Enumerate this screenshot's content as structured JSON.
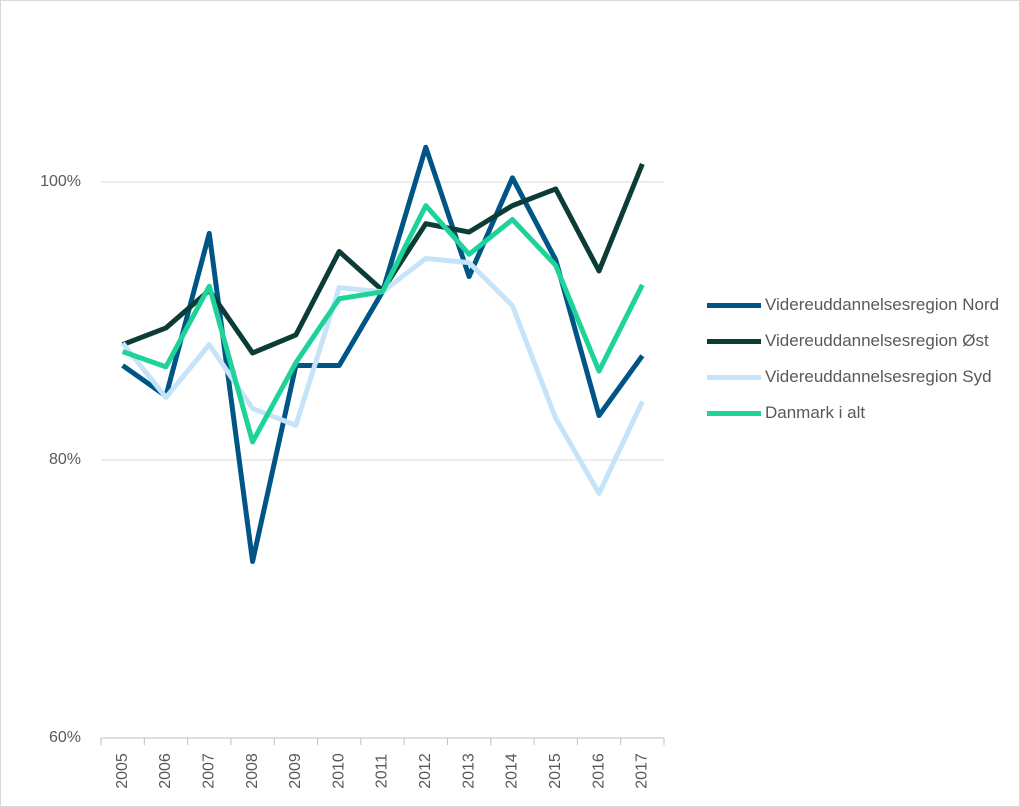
{
  "chart_data": {
    "type": "line",
    "categories": [
      "2005",
      "2006",
      "2007",
      "2008",
      "2009",
      "2010",
      "2011",
      "2012",
      "2013",
      "2014",
      "2015",
      "2016",
      "2017"
    ],
    "series": [
      {
        "name": "Videreuddannelsesregion Nord",
        "color": "#005587",
        "values": [
          86.8,
          84.6,
          96.3,
          72.7,
          86.8,
          86.8,
          92.1,
          102.5,
          93.2,
          100.3,
          94.4,
          83.2,
          87.5
        ]
      },
      {
        "name": "Videreuddannelsesregion Øst",
        "color": "#0b3d36",
        "values": [
          88.3,
          89.5,
          92.2,
          87.7,
          89.0,
          95.0,
          92.2,
          97.0,
          96.4,
          98.3,
          99.5,
          93.6,
          101.3
        ]
      },
      {
        "name": "Videreuddannelsesregion Syd",
        "color": "#c5e4f9",
        "values": [
          88.4,
          84.5,
          88.3,
          83.7,
          82.5,
          92.4,
          92.1,
          94.5,
          94.2,
          91.1,
          83.0,
          77.6,
          84.2
        ]
      },
      {
        "name": "Danmark i alt",
        "color": "#1dd39a",
        "values": [
          87.8,
          86.7,
          92.5,
          81.3,
          87.0,
          91.6,
          92.1,
          98.3,
          94.8,
          97.3,
          94.0,
          86.4,
          92.6
        ]
      }
    ],
    "ylim": [
      60,
      105
    ],
    "yticks": [
      {
        "value": 60,
        "label": "60%"
      },
      {
        "value": 80,
        "label": "80%"
      },
      {
        "value": 100,
        "label": "100%"
      }
    ],
    "grid": true,
    "legend": "right"
  }
}
